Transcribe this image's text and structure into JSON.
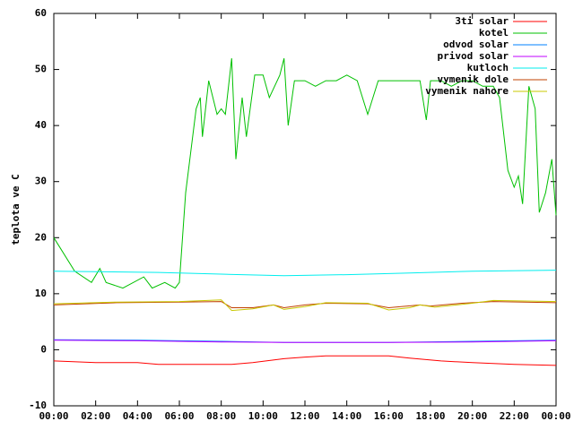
{
  "chart_data": {
    "type": "line",
    "ylabel": "teplota ve C",
    "xlim": [
      0,
      24
    ],
    "xticks": [
      {
        "value": 0,
        "label": "00:00"
      },
      {
        "value": 2,
        "label": "02:00"
      },
      {
        "value": 4,
        "label": "04:00"
      },
      {
        "value": 6,
        "label": "06:00"
      },
      {
        "value": 8,
        "label": "08:00"
      },
      {
        "value": 10,
        "label": "10:00"
      },
      {
        "value": 12,
        "label": "12:00"
      },
      {
        "value": 14,
        "label": "14:00"
      },
      {
        "value": 16,
        "label": "16:00"
      },
      {
        "value": 18,
        "label": "18:00"
      },
      {
        "value": 20,
        "label": "20:00"
      },
      {
        "value": 22,
        "label": "22:00"
      },
      {
        "value": 24,
        "label": "00:00"
      }
    ],
    "ylim": [
      -10,
      60
    ],
    "yticks": [
      -10,
      0,
      10,
      20,
      30,
      40,
      50,
      60
    ],
    "legend": "top-right",
    "series": [
      {
        "name": "3ti solar",
        "color": "#ff0000",
        "x": [
          0,
          2,
          4,
          5,
          8.5,
          9.5,
          11,
          12,
          13,
          16,
          17,
          18.5,
          20,
          22,
          24
        ],
        "values": [
          -2,
          -2.3,
          -2.3,
          -2.6,
          -2.6,
          -2.3,
          -1.6,
          -1.3,
          -1.1,
          -1.1,
          -1.5,
          -2,
          -2.3,
          -2.6,
          -2.8
        ]
      },
      {
        "name": "kotel",
        "color": "#00c000",
        "x": [
          0,
          1,
          1.8,
          2.2,
          2.5,
          3.3,
          4.3,
          4.7,
          5.3,
          5.8,
          6,
          6.3,
          6.8,
          7,
          7.1,
          7.4,
          7.8,
          8,
          8.2,
          8.5,
          8.7,
          9,
          9.2,
          9.6,
          10,
          10.3,
          10.8,
          11,
          11.2,
          11.5,
          12,
          12.5,
          13,
          13.5,
          14,
          14.5,
          15,
          15.5,
          16,
          16.5,
          17,
          17.5,
          17.8,
          18,
          18.5,
          19,
          19.5,
          20,
          20.5,
          21,
          21.3,
          21.7,
          22,
          22.2,
          22.4,
          22.7,
          23,
          23.2,
          23.5,
          23.8,
          24
        ],
        "values": [
          20,
          14,
          12,
          14.5,
          12,
          11,
          13,
          11,
          12,
          11,
          12,
          28,
          43,
          45,
          38,
          48,
          42,
          43,
          42,
          52,
          34,
          45,
          38,
          49,
          49,
          45,
          49,
          52,
          40,
          48,
          48,
          47,
          48,
          48,
          49,
          48,
          42,
          48,
          48,
          48,
          48,
          48,
          41,
          48,
          48,
          47,
          48,
          48,
          47,
          47,
          45,
          32,
          29,
          31,
          26,
          47,
          43,
          24.5,
          28,
          34,
          24
        ]
      },
      {
        "name": "odvod solar",
        "color": "#0080ff",
        "x": [
          0,
          4,
          8,
          11,
          16,
          20,
          24
        ],
        "values": [
          1.8,
          1.7,
          1.5,
          1.3,
          1.3,
          1.5,
          1.7
        ]
      },
      {
        "name": "privod solar",
        "color": "#c000ff",
        "x": [
          0,
          4,
          8,
          11,
          16,
          20,
          24
        ],
        "values": [
          1.7,
          1.6,
          1.4,
          1.3,
          1.3,
          1.4,
          1.6
        ]
      },
      {
        "name": "kutloch",
        "color": "#00eeee",
        "x": [
          0,
          5,
          8,
          11,
          14,
          17,
          20,
          24
        ],
        "values": [
          14,
          13.8,
          13.5,
          13.2,
          13.4,
          13.7,
          14,
          14.2
        ]
      },
      {
        "name": "vymenik dole",
        "color": "#c04000",
        "x": [
          0,
          3,
          6,
          8,
          8.5,
          9.5,
          10.5,
          11,
          12,
          13,
          15,
          16,
          17.5,
          18,
          19.5,
          21,
          24
        ],
        "values": [
          8,
          8.4,
          8.5,
          8.6,
          7.5,
          7.5,
          8,
          7.5,
          8,
          8.3,
          8.2,
          7.5,
          8,
          7.8,
          8.3,
          8.6,
          8.4
        ]
      },
      {
        "name": "vymenik nahore",
        "color": "#c8c800",
        "x": [
          0,
          3,
          6,
          8,
          8.5,
          9.5,
          10.5,
          11,
          12,
          13,
          15,
          16,
          17,
          17.5,
          18.2,
          20,
          21,
          24
        ],
        "values": [
          8.2,
          8.5,
          8.6,
          8.9,
          7,
          7.3,
          8,
          7.2,
          7.7,
          8.4,
          8.3,
          7.1,
          7.5,
          8,
          7.6,
          8.3,
          8.8,
          8.6
        ]
      }
    ]
  }
}
